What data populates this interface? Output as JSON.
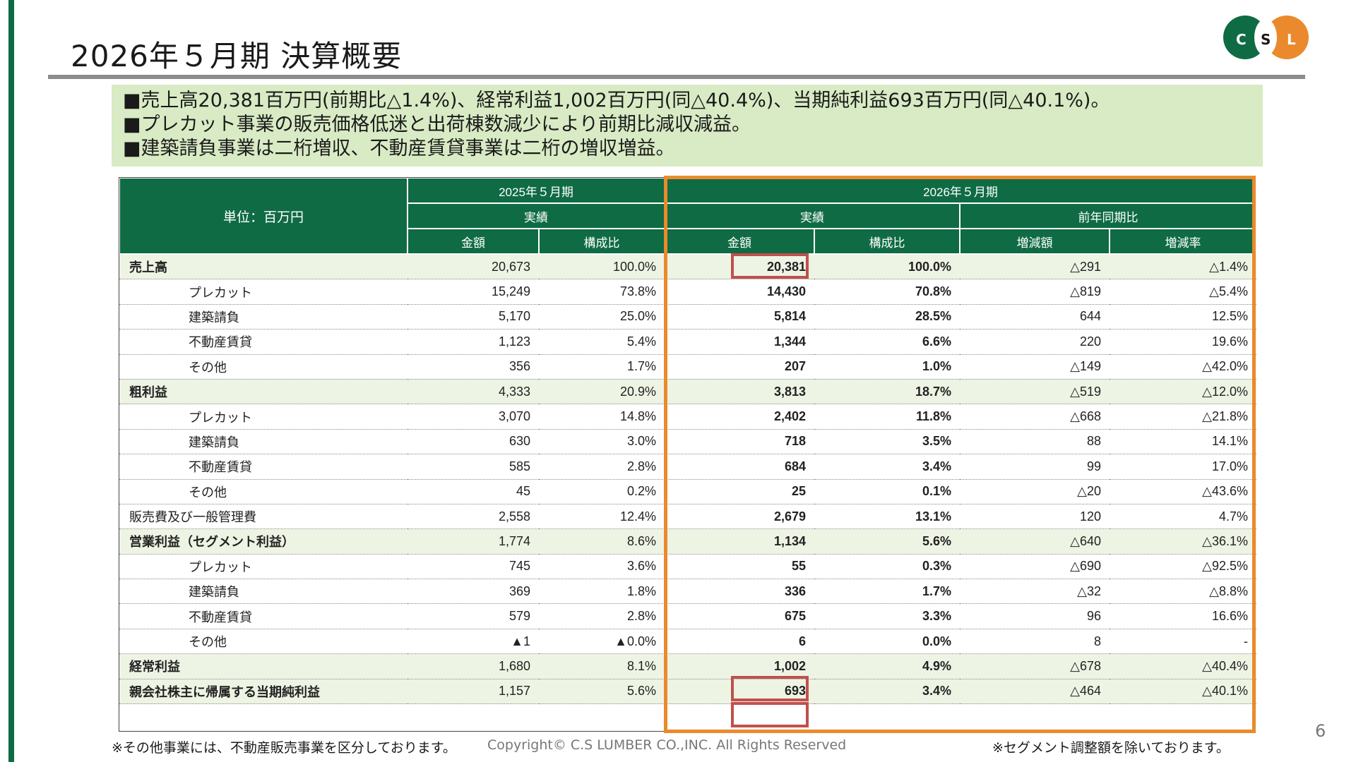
{
  "title": "2026年５月期 決算概要",
  "logo": {
    "letters": [
      "C",
      "S",
      "L"
    ],
    "colors": {
      "green": "#0f6b44",
      "orange": "#ea8a2c"
    }
  },
  "summary": [
    "■売上高20,381百万円(前期比△1.4%)、経常利益1,002百万円(同△40.4%)、当期純利益693百万円(同△40.1%)。",
    "■プレカット事業の販売価格低迷と出荷棟数減少により前期比減収減益。",
    "■建築請負事業は二桁増収、不動産賃貸事業は二桁の増収増益。"
  ],
  "table": {
    "unit": "単位：百万円",
    "period_prev": "2025年５月期",
    "period_curr": "2026年５月期",
    "actual": "実績",
    "yoy": "前年同期比",
    "col_amount": "金額",
    "col_ratio": "構成比",
    "col_diff": "増減額",
    "col_rate": "増減率",
    "rows": [
      {
        "label": "売上高",
        "type": "main",
        "prev_amt": "20,673",
        "prev_ratio": "100.0%",
        "curr_amt": "20,381",
        "curr_ratio": "100.0%",
        "diff": "△291",
        "rate": "△1.4%"
      },
      {
        "label": "プレカット",
        "type": "sub",
        "prev_amt": "15,249",
        "prev_ratio": "73.8%",
        "curr_amt": "14,430",
        "curr_ratio": "70.8%",
        "diff": "△819",
        "rate": "△5.4%"
      },
      {
        "label": "建築請負",
        "type": "sub",
        "prev_amt": "5,170",
        "prev_ratio": "25.0%",
        "curr_amt": "5,814",
        "curr_ratio": "28.5%",
        "diff": "644",
        "rate": "12.5%"
      },
      {
        "label": "不動産賃貸",
        "type": "sub",
        "prev_amt": "1,123",
        "prev_ratio": "5.4%",
        "curr_amt": "1,344",
        "curr_ratio": "6.6%",
        "diff": "220",
        "rate": "19.6%"
      },
      {
        "label": "その他",
        "type": "sub",
        "prev_amt": "356",
        "prev_ratio": "1.7%",
        "curr_amt": "207",
        "curr_ratio": "1.0%",
        "diff": "△149",
        "rate": "△42.0%"
      },
      {
        "label": "粗利益",
        "type": "main",
        "prev_amt": "4,333",
        "prev_ratio": "20.9%",
        "curr_amt": "3,813",
        "curr_ratio": "18.7%",
        "diff": "△519",
        "rate": "△12.0%"
      },
      {
        "label": "プレカット",
        "type": "sub",
        "prev_amt": "3,070",
        "prev_ratio": "14.8%",
        "curr_amt": "2,402",
        "curr_ratio": "11.8%",
        "diff": "△668",
        "rate": "△21.8%"
      },
      {
        "label": "建築請負",
        "type": "sub",
        "prev_amt": "630",
        "prev_ratio": "3.0%",
        "curr_amt": "718",
        "curr_ratio": "3.5%",
        "diff": "88",
        "rate": "14.1%"
      },
      {
        "label": "不動産賃貸",
        "type": "sub",
        "prev_amt": "585",
        "prev_ratio": "2.8%",
        "curr_amt": "684",
        "curr_ratio": "3.4%",
        "diff": "99",
        "rate": "17.0%"
      },
      {
        "label": "その他",
        "type": "sub",
        "prev_amt": "45",
        "prev_ratio": "0.2%",
        "curr_amt": "25",
        "curr_ratio": "0.1%",
        "diff": "△20",
        "rate": "△43.6%"
      },
      {
        "label": "販売費及び一般管理費",
        "type": "plain",
        "prev_amt": "2,558",
        "prev_ratio": "12.4%",
        "curr_amt": "2,679",
        "curr_ratio": "13.1%",
        "diff": "120",
        "rate": "4.7%"
      },
      {
        "label": "営業利益（セグメント利益）",
        "type": "main",
        "prev_amt": "1,774",
        "prev_ratio": "8.6%",
        "curr_amt": "1,134",
        "curr_ratio": "5.6%",
        "diff": "△640",
        "rate": "△36.1%"
      },
      {
        "label": "プレカット",
        "type": "sub",
        "prev_amt": "745",
        "prev_ratio": "3.6%",
        "curr_amt": "55",
        "curr_ratio": "0.3%",
        "diff": "△690",
        "rate": "△92.5%"
      },
      {
        "label": "建築請負",
        "type": "sub",
        "prev_amt": "369",
        "prev_ratio": "1.8%",
        "curr_amt": "336",
        "curr_ratio": "1.7%",
        "diff": "△32",
        "rate": "△8.8%"
      },
      {
        "label": "不動産賃貸",
        "type": "sub",
        "prev_amt": "579",
        "prev_ratio": "2.8%",
        "curr_amt": "675",
        "curr_ratio": "3.3%",
        "diff": "96",
        "rate": "16.6%"
      },
      {
        "label": "その他",
        "type": "sub",
        "prev_amt": "▲1",
        "prev_ratio": "▲0.0%",
        "curr_amt": "6",
        "curr_ratio": "0.0%",
        "diff": "8",
        "rate": "-"
      },
      {
        "label": "経常利益",
        "type": "main",
        "prev_amt": "1,680",
        "prev_ratio": "8.1%",
        "curr_amt": "1,002",
        "curr_ratio": "4.9%",
        "diff": "△678",
        "rate": "△40.4%"
      },
      {
        "label": "親会社株主に帰属する当期純利益",
        "type": "main",
        "prev_amt": "1,157",
        "prev_ratio": "5.6%",
        "curr_amt": "693",
        "curr_ratio": "3.4%",
        "diff": "△464",
        "rate": "△40.1%"
      }
    ]
  },
  "footnote_left": "※その他事業には、不動産販売事業を区分しております。",
  "copyright": "Copyright© C.S LUMBER CO.,INC. All Rights Reserved",
  "footnote_right": "※セグメント調整額を除いております。",
  "page_number": "6",
  "highlight_colors": {
    "orange": "#ea8a2c",
    "red": "#c0504d",
    "header_green": "#0f6b44",
    "summary_bg": "#d8ebc4"
  }
}
